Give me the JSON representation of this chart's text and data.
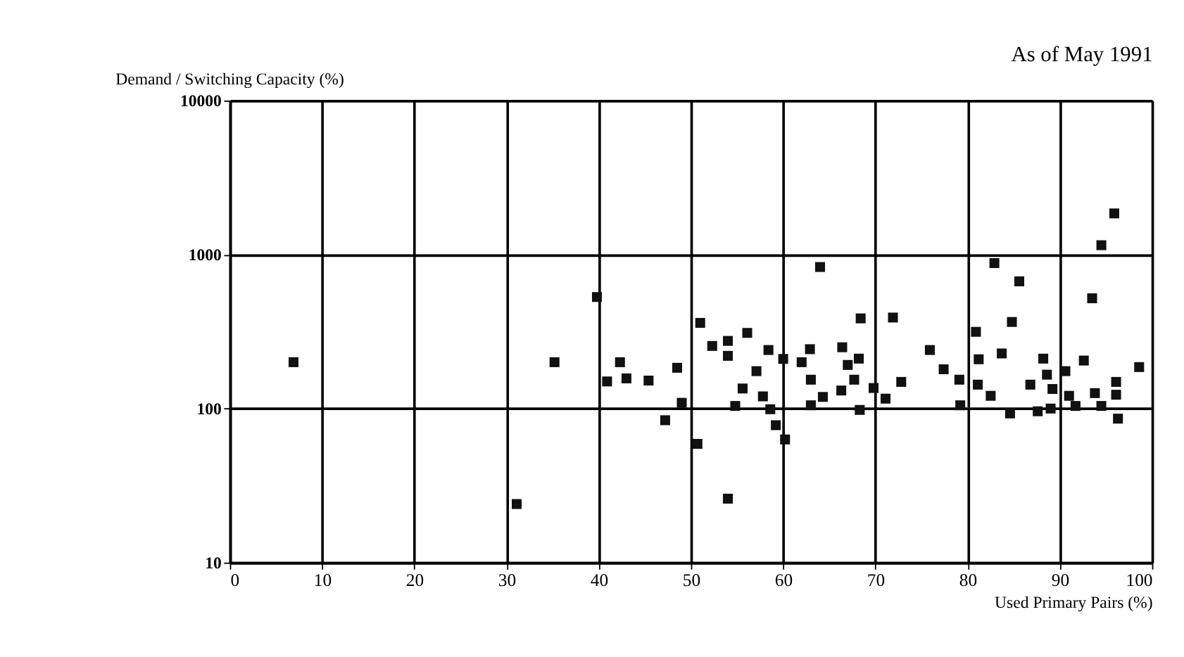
{
  "chart_data": {
    "type": "scatter",
    "title": "As of May 1991",
    "xlabel": "Used Primary Pairs (%)",
    "ylabel": "Demand / Switching Capacity (%)",
    "x": [
      6.9,
      31.1,
      35.2,
      39.8,
      42.3,
      40.9,
      43.0,
      45.4,
      47.2,
      48.5,
      49.0,
      64.0,
      51.0,
      56.1,
      52.3,
      54.0,
      54.0,
      58.4,
      60.0,
      57.1,
      55.6,
      57.8,
      54.8,
      58.6,
      59.2,
      60.2,
      50.7,
      54.0,
      62.9,
      62.0,
      63.0,
      63.0,
      66.4,
      67.0,
      68.2,
      67.7,
      66.3,
      64.3,
      68.3,
      68.4,
      71.9,
      72.8,
      71.1,
      69.8,
      94.5,
      82.9,
      85.6,
      93.5,
      84.8,
      80.9,
      75.9,
      77.4,
      79.1,
      81.1,
      81.2,
      83.7,
      79.2,
      82.5,
      84.6,
      87.6,
      89.0,
      86.8,
      88.6,
      88.2,
      90.6,
      89.2,
      91.7,
      93.8,
      94.5,
      96.1,
      96.3,
      98.6,
      92.6,
      96.1,
      91.0,
      95.9
    ],
    "values": [
      200,
      24,
      200,
      530,
      200,
      150,
      157,
      152,
      84,
      184,
      109,
      830,
      360,
      310,
      255,
      275,
      220,
      240,
      210,
      175,
      135,
      120,
      104,
      99,
      78,
      63,
      59,
      26,
      243,
      200,
      154,
      105,
      250,
      192,
      211,
      154,
      131,
      119,
      98,
      385,
      390,
      149,
      116,
      136,
      1150,
      880,
      670,
      520,
      365,
      315,
      240,
      180,
      154,
      143,
      209,
      228,
      105,
      121,
      93,
      96,
      100,
      143,
      166,
      211,
      175,
      134,
      104,
      126,
      104,
      149,
      86,
      186,
      205,
      123,
      121,
      1850
    ],
    "color": "#111111",
    "marker": "square",
    "log": "y",
    "xlim": [
      0,
      100
    ],
    "xticks": [
      0,
      10,
      20,
      30,
      40,
      50,
      60,
      70,
      80,
      90,
      100
    ],
    "ylim": [
      10,
      10000
    ],
    "yticks": [
      10,
      100,
      1000,
      10000
    ],
    "grid": true
  }
}
